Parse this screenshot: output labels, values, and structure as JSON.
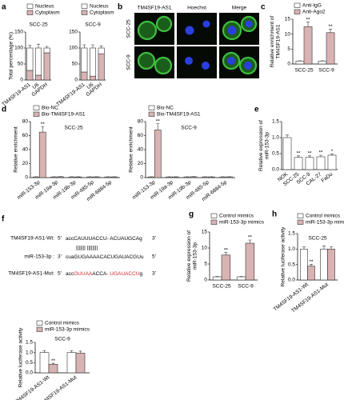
{
  "panel_labels": [
    "a",
    "b",
    "c",
    "d",
    "e",
    "f",
    "g",
    "h"
  ],
  "micrograph": {
    "columns": [
      "TM4SF19-AS1",
      "Hoechst",
      "Merge"
    ],
    "rows": [
      "SCC-25",
      "SCC-9"
    ]
  },
  "sequences": {
    "wt": {
      "name": "TM4SF19-AS1-Wt:",
      "left": "5'",
      "segments": [
        {
          "text": "accCAUUUACCU- ACUAUGCAg",
          "color": "#000000"
        }
      ],
      "right": "3'"
    },
    "pairing": "|||||||   ||||||||",
    "mirna": {
      "name": "miR-153-3p :",
      "left": "3'",
      "segments": [
        {
          "text": "cuaGUGAAAACACUGAUACGUu",
          "color": "#000000"
        }
      ],
      "right": "5'"
    },
    "mut": {
      "name": "TM4SF19-AS1-Mut:",
      "left": "5'",
      "segments": [
        {
          "text": "acc",
          "color": "#000000"
        },
        {
          "text": "GUUAA",
          "color": "#d62728"
        },
        {
          "text": "ACCA",
          "color": "#000000"
        },
        {
          "text": "- UGAUACCU",
          "color": "#d62728"
        },
        {
          "text": "g",
          "color": "#000000"
        }
      ],
      "right": "3'"
    }
  },
  "chart_data": [
    {
      "type": "stacked_bar",
      "title": "SCC-25",
      "y_label": [
        "Total percentage (%)"
      ],
      "categories": [
        "TM4SF19-AS1",
        "U6",
        "GAPDH"
      ],
      "series": [
        {
          "name": "Nucleus",
          "color": "#ffffff",
          "values": [
            70,
            85,
            15
          ],
          "errors": [
            8,
            12,
            5
          ]
        },
        {
          "name": "Cytoplasm",
          "color": "#d9b3b3",
          "values": [
            30,
            15,
            85
          ],
          "errors": [
            4,
            3,
            6
          ]
        }
      ],
      "ylim": [
        0,
        150
      ],
      "yticks": [
        0,
        50,
        100,
        150
      ],
      "rotate_labels": true
    },
    {
      "type": "stacked_bar",
      "title": "SCC-9",
      "categories": [
        "TM4SF19-AS1",
        "U6",
        "GAPDH"
      ],
      "series": [
        {
          "name": "Nucleus",
          "color": "#ffffff",
          "values": [
            75,
            88,
            18
          ],
          "errors": [
            10,
            10,
            6
          ]
        },
        {
          "name": "Cytoplasm",
          "color": "#d9b3b3",
          "values": [
            25,
            12,
            82
          ],
          "errors": [
            4,
            3,
            6
          ]
        }
      ],
      "ylim": [
        0,
        150
      ],
      "yticks": [
        0,
        50,
        100,
        150
      ],
      "rotate_labels": true
    },
    {
      "type": "bar",
      "y_label": [
        "Relative enrichment of",
        "TM4SF19-AS1"
      ],
      "categories": [
        "SCC-25",
        "SCC-9"
      ],
      "series": [
        {
          "name": "Anti-IgG",
          "color": "#ffffff",
          "values": [
            1,
            1
          ],
          "errors": [
            0.1,
            0.1
          ]
        },
        {
          "name": "Anti-Ago2",
          "color": "#d9b3b3",
          "values": [
            12.5,
            10.5
          ],
          "errors": [
            1.5,
            1.2
          ],
          "significance": [
            "**",
            "**"
          ]
        }
      ],
      "ylim": [
        0,
        15
      ],
      "yticks": [
        0,
        5,
        10,
        15
      ],
      "rotate_labels": false
    },
    {
      "type": "bar",
      "title": "SCC-25",
      "y_label": [
        "Relative enrichment"
      ],
      "categories": [
        "miR-153-3p",
        "miR-19a-3p",
        "miR-19b-3p",
        "miR-485-5p",
        "miR-6884-5p"
      ],
      "series": [
        {
          "name": "Bio-NC",
          "color": "#ffffff",
          "values": [
            1,
            1,
            1,
            1,
            1
          ],
          "errors": [
            0.2,
            0.2,
            0.2,
            0.2,
            0.2
          ]
        },
        {
          "name": "Bio-TM4SF19-AS1",
          "color": "#d9b3b3",
          "values": [
            65,
            1.2,
            1,
            1.1,
            1
          ],
          "errors": [
            8,
            0.3,
            0.2,
            0.2,
            0.2
          ],
          "significance": [
            "**",
            null,
            null,
            null,
            null
          ]
        }
      ],
      "ylim": [
        0,
        80
      ],
      "yticks": [
        0,
        20,
        40,
        60,
        80
      ],
      "rotate_labels": true
    },
    {
      "type": "bar",
      "title": "SCC-9",
      "y_label": [
        "Relative enrichment"
      ],
      "categories": [
        "miR-153-3p",
        "miR-19a-3p",
        "miR-19b-3p",
        "miR-485-5p",
        "miR-6884-5p"
      ],
      "series": [
        {
          "name": "Bio-NC",
          "color": "#ffffff",
          "values": [
            1,
            1,
            1,
            1,
            1
          ],
          "errors": [
            0.2,
            0.2,
            0.2,
            0.2,
            0.2
          ]
        },
        {
          "name": "Bio-TM4SF19-AS1",
          "color": "#d9b3b3",
          "values": [
            68,
            1,
            1.2,
            1,
            1.1
          ],
          "errors": [
            9,
            0.2,
            0.3,
            0.2,
            0.2
          ],
          "significance": [
            "**",
            null,
            null,
            null,
            null
          ]
        }
      ],
      "ylim": [
        0,
        80
      ],
      "yticks": [
        0,
        20,
        40,
        60,
        80
      ],
      "rotate_labels": true
    },
    {
      "type": "bar",
      "y_label": [
        "Relative expression of",
        "miR-153-3p"
      ],
      "categories": [
        "NOK",
        "SCC-25",
        "SCC-9",
        "CAL-27",
        "FaDu"
      ],
      "series": [
        {
          "color": "#ffffff",
          "values": [
            1.0,
            0.38,
            0.38,
            0.4,
            0.45
          ],
          "errors": [
            0.08,
            0.05,
            0.05,
            0.05,
            0.04
          ],
          "significance": [
            null,
            "**",
            "**",
            "**",
            "*"
          ]
        }
      ],
      "ylim": [
        0,
        1.5
      ],
      "yticks": [
        {
          "value": 0,
          "label": "0.0"
        },
        0.5,
        {
          "value": 1,
          "label": "1.0"
        },
        1.5
      ],
      "rotate_labels": true
    },
    {
      "type": "bar",
      "y_label": [
        "Relative expression of",
        "miR-153-3p"
      ],
      "categories": [
        "SCC-25",
        "SCC-9"
      ],
      "series": [
        {
          "name": "Control mimics",
          "color": "#ffffff",
          "values": [
            1,
            1
          ],
          "errors": [
            0.1,
            0.1
          ]
        },
        {
          "name": "miR-153-3p mimics",
          "color": "#d9b3b3",
          "values": [
            7.8,
            11.5
          ],
          "errors": [
            0.8,
            1.0
          ],
          "significance": [
            "**",
            "**"
          ]
        }
      ],
      "ylim": [
        0,
        15
      ],
      "yticks": [
        0,
        5,
        10,
        15
      ],
      "rotate_labels": false
    },
    {
      "type": "bar",
      "title": "SCC-25",
      "y_label": [
        "Relative luciferase activity"
      ],
      "categories": [
        "TM4SF19-AS1-Wt",
        "TM4SF19-AS1-Mut"
      ],
      "series": [
        {
          "name": "Control mimics",
          "color": "#ffffff",
          "values": [
            1.0,
            1.0
          ],
          "errors": [
            0.08,
            0.1
          ]
        },
        {
          "name": "miR-153-3p mimics",
          "color": "#d9b3b3",
          "values": [
            0.45,
            1.0
          ],
          "errors": [
            0.06,
            0.08
          ],
          "significance": [
            "**",
            null
          ]
        }
      ],
      "ylim": [
        0,
        1.5
      ],
      "yticks": [
        {
          "value": 0,
          "label": "0.0"
        },
        0.5,
        {
          "value": 1,
          "label": "1.0"
        },
        1.5
      ],
      "rotate_labels": true
    },
    {
      "type": "bar",
      "title": "SCC-9",
      "y_label": [
        "Relative luciferase activity"
      ],
      "categories": [
        "TM4SF19-AS1-Wt",
        "TM4SF19-AS1-Mut"
      ],
      "series": [
        {
          "name": "Control mimics",
          "color": "#ffffff",
          "values": [
            1.0,
            1.0
          ],
          "errors": [
            0.1,
            0.1
          ]
        },
        {
          "name": "miR-153-3p mimics",
          "color": "#d9b3b3",
          "values": [
            0.42,
            0.97
          ],
          "errors": [
            0.05,
            0.1
          ],
          "significance": [
            "**",
            null
          ]
        }
      ],
      "ylim": [
        0,
        1.5
      ],
      "yticks": [
        {
          "value": 0,
          "label": "0.0"
        },
        0.5,
        {
          "value": 1,
          "label": "1.0"
        },
        1.5
      ],
      "rotate_labels": true
    }
  ]
}
